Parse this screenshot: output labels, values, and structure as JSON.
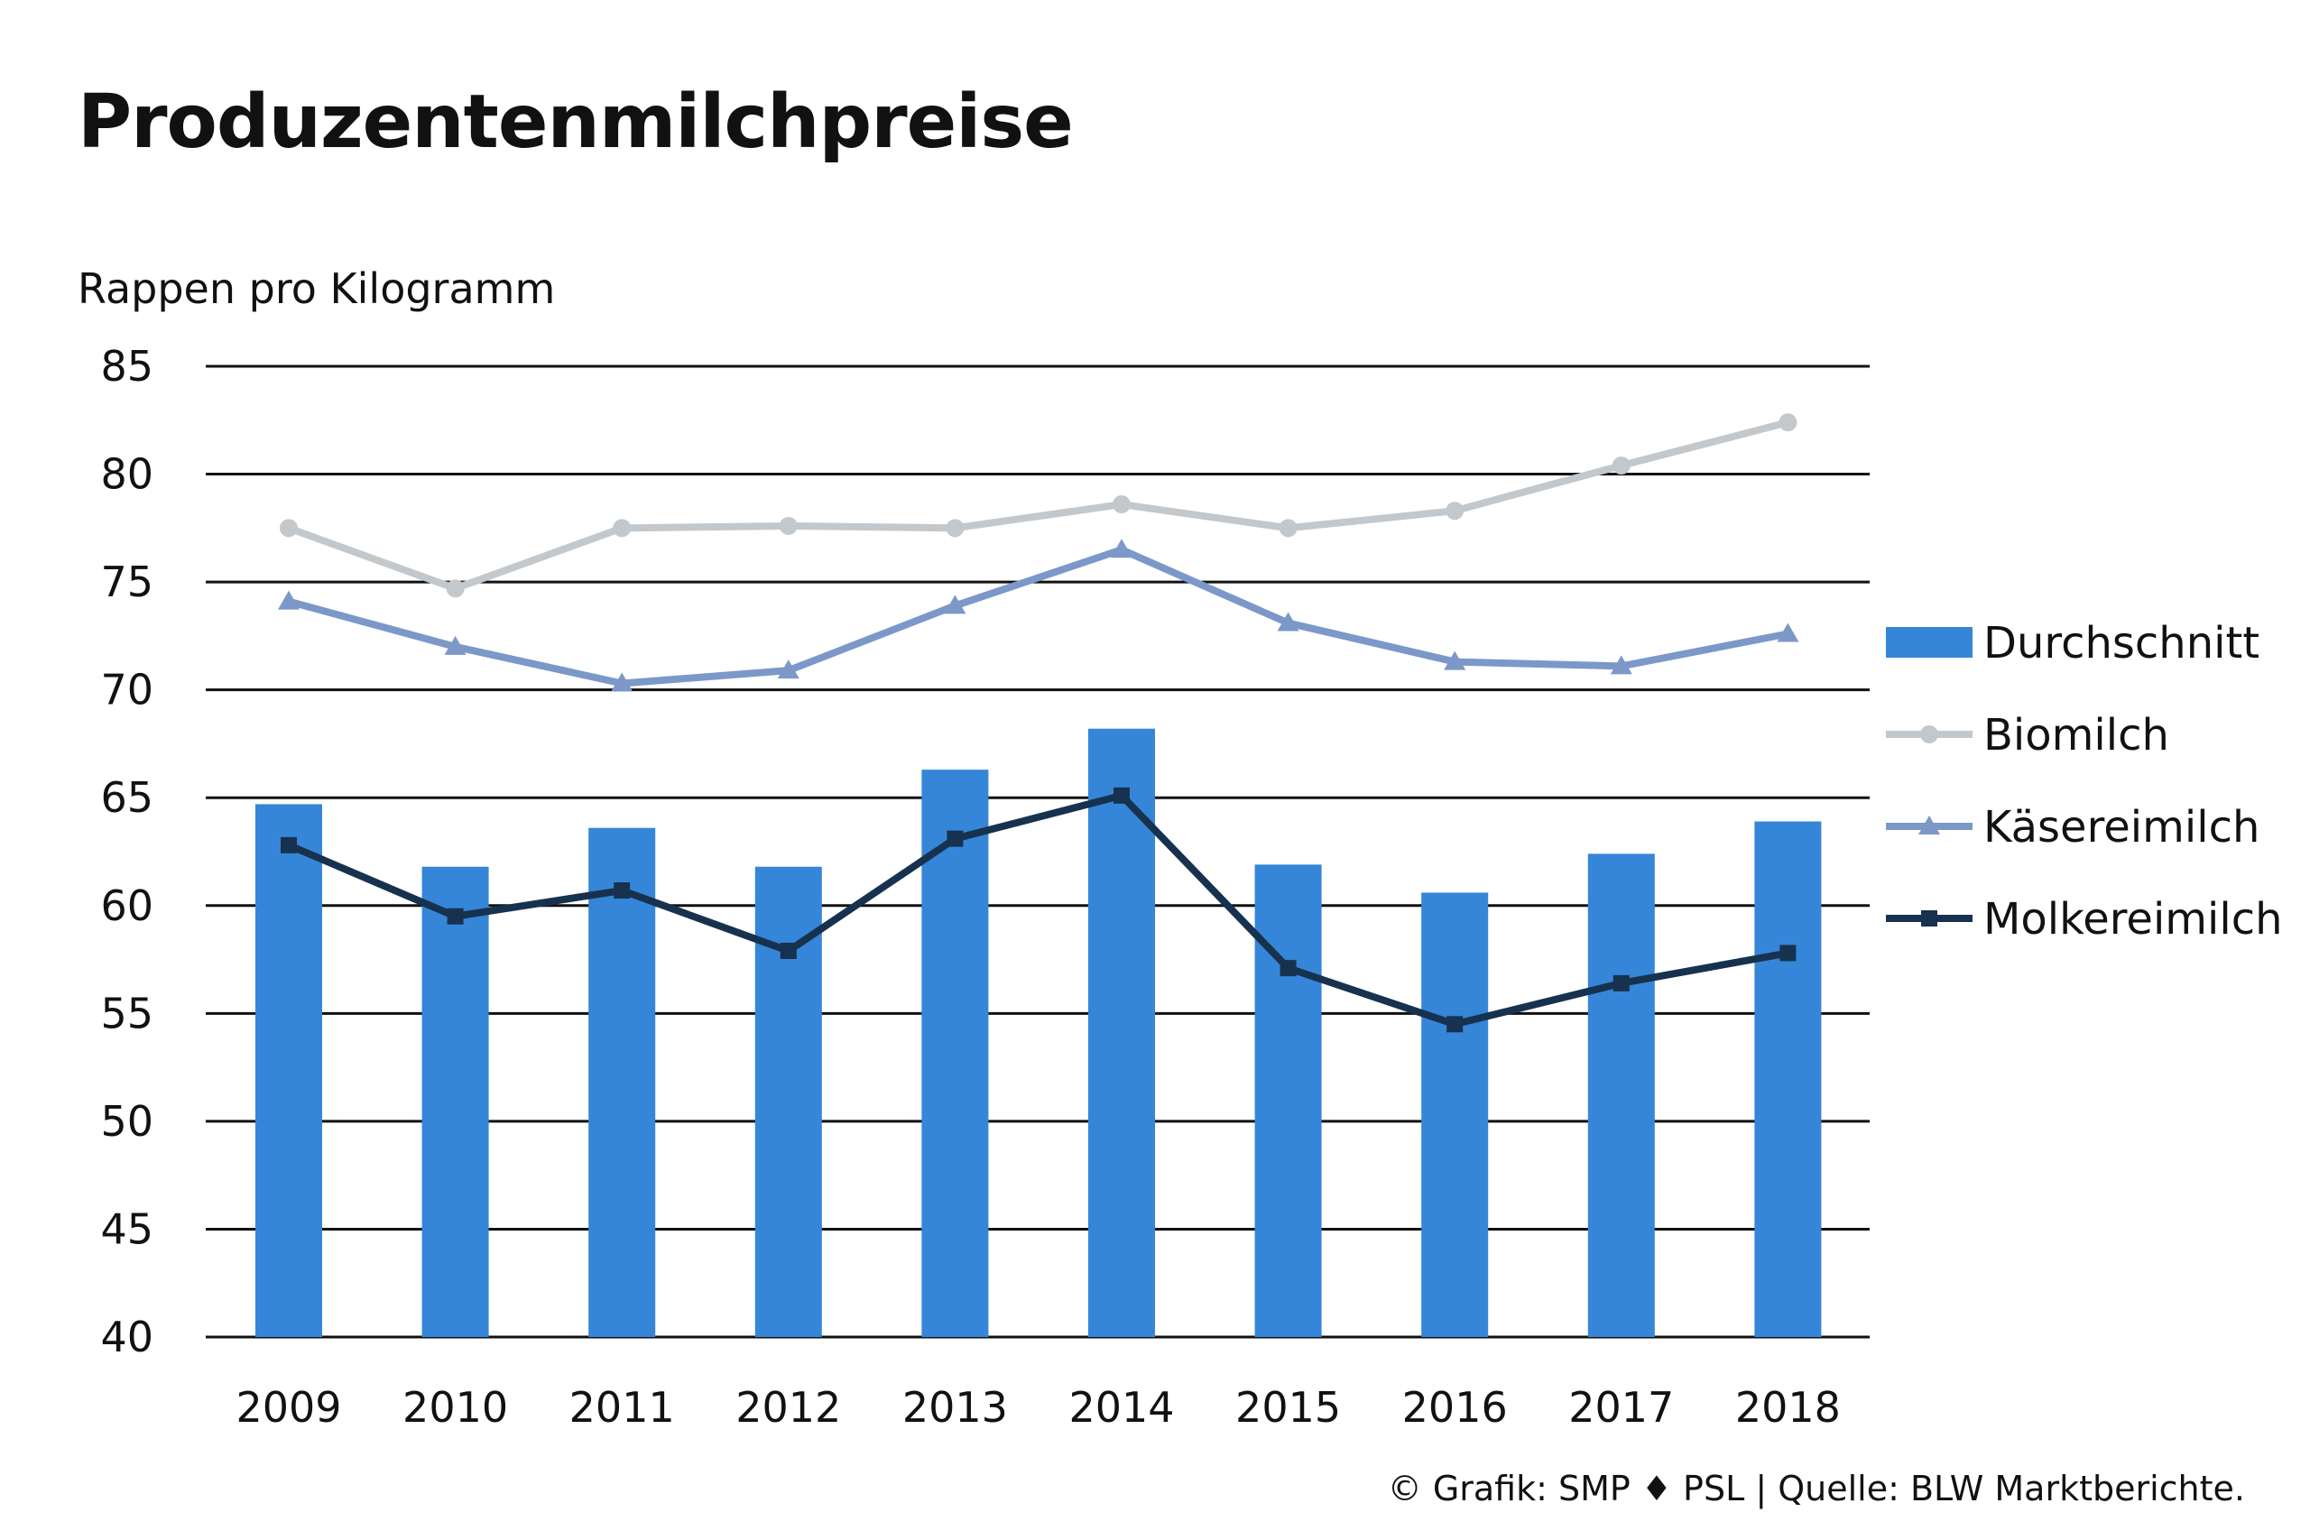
{
  "title": "Produzentenmilchpreise",
  "credit": "© Grafik: SMP ♦ PSL | Quelle: BLW Marktberichte.",
  "chart_data": {
    "type": "bar",
    "title": "Produzentenmilchpreise",
    "ylabel": "Rappen pro Kilogramm",
    "xlabel": "",
    "ylim": [
      40,
      85
    ],
    "yticks": [
      40,
      45,
      50,
      55,
      60,
      65,
      70,
      75,
      80,
      85
    ],
    "grid": true,
    "legend": "right",
    "categories": [
      "2009",
      "2010",
      "2011",
      "2012",
      "2013",
      "2014",
      "2015",
      "2016",
      "2017",
      "2018"
    ],
    "series": [
      {
        "name": "Durchschnitt",
        "type": "bar",
        "color": "#3586d8",
        "values": [
          64.7,
          61.8,
          63.6,
          61.8,
          66.3,
          68.2,
          61.9,
          60.6,
          62.4,
          63.9
        ]
      },
      {
        "name": "Biomilch",
        "type": "line",
        "marker": "circle",
        "color": "#c3c8cc",
        "values": [
          77.5,
          74.7,
          77.5,
          77.6,
          77.5,
          78.6,
          77.5,
          78.3,
          80.4,
          82.4
        ]
      },
      {
        "name": "Käsereimilch",
        "type": "line",
        "marker": "triangle",
        "color": "#7b98c8",
        "values": [
          74.1,
          72.0,
          70.3,
          70.9,
          73.9,
          76.5,
          73.1,
          71.3,
          71.1,
          72.6
        ]
      },
      {
        "name": "Molkereimilch",
        "type": "line",
        "marker": "square",
        "color": "#17324f",
        "values": [
          62.8,
          59.5,
          60.7,
          57.9,
          63.1,
          65.1,
          57.1,
          54.5,
          56.4,
          57.8
        ]
      }
    ]
  }
}
